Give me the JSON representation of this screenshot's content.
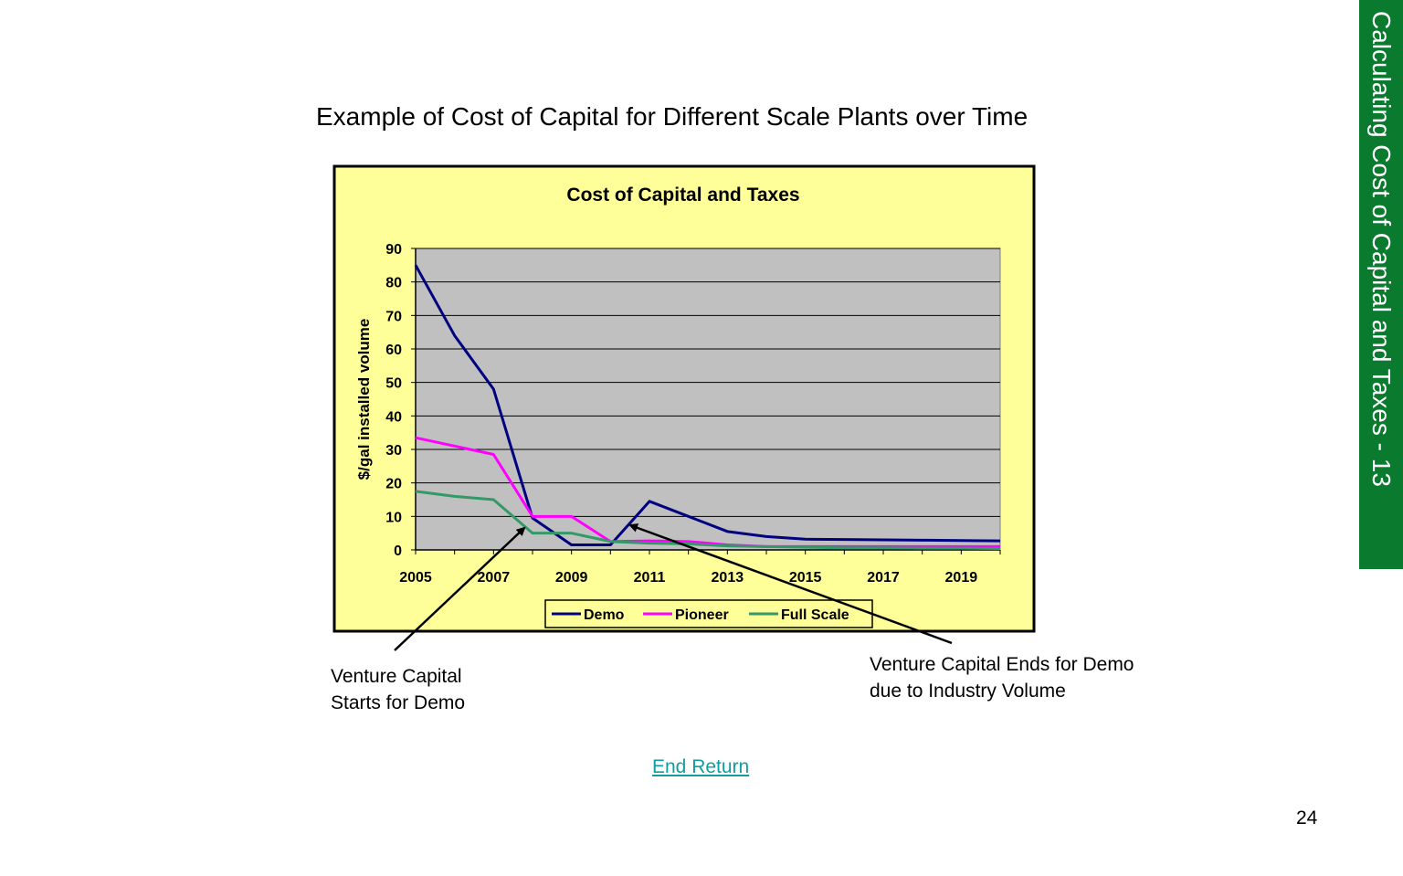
{
  "slide": {
    "title": "Example of Cost of Capital for Different Scale Plants over Time",
    "side_label": "Calculating Cost of Capital and Taxes - 13",
    "annotation_left": [
      "Venture Capital",
      "Starts for Demo"
    ],
    "annotation_right": [
      "Venture Capital Ends for Demo",
      "due to Industry Volume"
    ],
    "link_label": "End Return",
    "page_number": "24",
    "accent_color": "#0a7a2f",
    "link_color": "#0f9ea0"
  },
  "chart_data": {
    "type": "line",
    "title": "Cost of Capital and Taxes",
    "xlabel": "",
    "ylabel": "$/gal installed volume",
    "x": [
      2005,
      2006,
      2007,
      2008,
      2009,
      2010,
      2011,
      2012,
      2013,
      2014,
      2015,
      2016,
      2017,
      2018,
      2019,
      2020
    ],
    "x_tick_labels": [
      "2005",
      "2007",
      "2009",
      "2011",
      "2013",
      "2015",
      "2017",
      "2019"
    ],
    "y_tick_labels": [
      "0",
      "10",
      "20",
      "30",
      "40",
      "50",
      "60",
      "70",
      "80",
      "90"
    ],
    "ylim": [
      0,
      90
    ],
    "grid": true,
    "legend_position": "bottom",
    "plot_background": "#c0c0c0",
    "chart_background": "#ffff99",
    "series": [
      {
        "name": "Demo",
        "color": "#000080",
        "values": [
          85,
          64,
          48,
          9.5,
          1.5,
          1.5,
          14.5,
          10,
          5.5,
          4,
          3.2,
          3.1,
          3.0,
          2.9,
          2.8,
          2.7
        ]
      },
      {
        "name": "Pioneer",
        "color": "#ff00ff",
        "values": [
          33.5,
          31,
          28.5,
          10,
          10,
          2.5,
          2.7,
          2.5,
          1.5,
          1.0,
          1.0,
          1.0,
          1.0,
          1.0,
          1.0,
          1.0
        ]
      },
      {
        "name": "Full Scale",
        "color": "#339966",
        "values": [
          17.5,
          16,
          15,
          5,
          5,
          2.5,
          2.0,
          1.8,
          1.2,
          1.0,
          0.8,
          0.6,
          0.6,
          0.5,
          0.5,
          0.4
        ]
      }
    ]
  }
}
